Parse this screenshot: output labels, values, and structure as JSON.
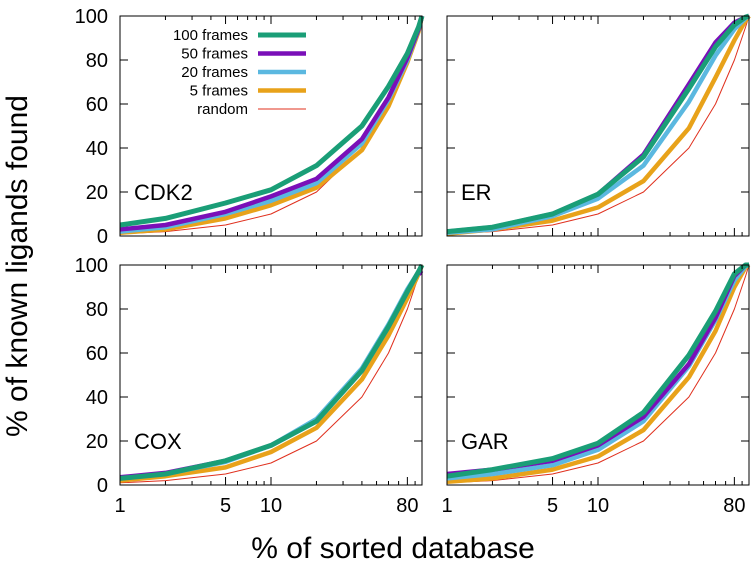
{
  "chart_data": {
    "type": "line",
    "ylabel": "% of known ligands found",
    "xlabel": "% of sorted database",
    "x_scale": "log",
    "x_ticks": [
      1,
      5,
      10,
      80
    ],
    "y_ticks": [
      0,
      20,
      40,
      60,
      80,
      100
    ],
    "xlim": [
      1,
      100
    ],
    "ylim": [
      0,
      100
    ],
    "legend": {
      "position": "top-left of first panel",
      "entries": [
        {
          "name": "100 frames",
          "color": "#1a9e77"
        },
        {
          "name": "50 frames",
          "color": "#7a0fb8"
        },
        {
          "name": "20 frames",
          "color": "#5bb8e0"
        },
        {
          "name": "5 frames",
          "color": "#e8a21a"
        },
        {
          "name": "random",
          "color": "#e0301e"
        }
      ]
    },
    "x": [
      1,
      2,
      5,
      10,
      20,
      40,
      60,
      80,
      95,
      100
    ],
    "panels": [
      {
        "title": "CDK2",
        "series": [
          {
            "name": "100 frames",
            "values": [
              5,
              8,
              15,
              21,
              32,
              50,
              68,
              83,
              95,
              100
            ]
          },
          {
            "name": "50 frames",
            "values": [
              3,
              5,
              11,
              18,
              26,
              44,
              63,
              81,
              94,
              100
            ]
          },
          {
            "name": "20 frames",
            "values": [
              2,
              4,
              10,
              16,
              24,
              42,
              62,
              80,
              94,
              100
            ]
          },
          {
            "name": "5 frames",
            "values": [
              1.5,
              3,
              8,
              14,
              22,
              39,
              59,
              79,
              93,
              100
            ]
          },
          {
            "name": "random",
            "values": [
              1,
              2,
              5,
              10,
              20,
              40,
              60,
              80,
              95,
              100
            ]
          }
        ]
      },
      {
        "title": "ER",
        "series": [
          {
            "name": "100 frames",
            "values": [
              2,
              4,
              10,
              19,
              36,
              67,
              86,
              96,
              99.5,
              100
            ]
          },
          {
            "name": "50 frames",
            "values": [
              2,
              4,
              10,
              19,
              37,
              69,
              88,
              97,
              99.5,
              100
            ]
          },
          {
            "name": "20 frames",
            "values": [
              1.5,
              3,
              9,
              17,
              32,
              61,
              82,
              94,
              99,
              100
            ]
          },
          {
            "name": "5 frames",
            "values": [
              1,
              3,
              7,
              13,
              25,
              49,
              72,
              89,
              98,
              100
            ]
          },
          {
            "name": "random",
            "values": [
              1,
              2,
              5,
              10,
              20,
              40,
              60,
              80,
              95,
              100
            ]
          }
        ]
      },
      {
        "title": "COX",
        "series": [
          {
            "name": "100 frames",
            "values": [
              3,
              5,
              11,
              18,
              29,
              52,
              72,
              88,
              97,
              100
            ]
          },
          {
            "name": "50 frames",
            "values": [
              3.5,
              5.5,
              11,
              18,
              29,
              52,
              72,
              88,
              97,
              96
            ]
          },
          {
            "name": "20 frames",
            "values": [
              3,
              5,
              10.5,
              18,
              30,
              53,
              73,
              89,
              97,
              100
            ]
          },
          {
            "name": "5 frames",
            "values": [
              2,
              4,
              8,
              15,
              26,
              48,
              68,
              85,
              96,
              100
            ]
          },
          {
            "name": "random",
            "values": [
              1,
              2,
              5,
              10,
              20,
              40,
              60,
              80,
              95,
              100
            ]
          }
        ]
      },
      {
        "title": "GAR",
        "series": [
          {
            "name": "100 frames",
            "values": [
              4,
              7,
              12,
              19,
              33,
              59,
              79,
              96,
              100,
              100
            ]
          },
          {
            "name": "50 frames",
            "values": [
              5,
              7,
              11,
              18,
              31,
              55,
              76,
              95,
              100,
              100
            ]
          },
          {
            "name": "20 frames",
            "values": [
              3,
              5,
              9,
              16,
              29,
              54,
              75,
              93,
              99.5,
              100
            ]
          },
          {
            "name": "5 frames",
            "values": [
              1.5,
              3,
              7,
              13,
              25,
              49,
              70,
              90,
              99,
              100
            ]
          },
          {
            "name": "random",
            "values": [
              1,
              2,
              5,
              10,
              20,
              40,
              60,
              80,
              95,
              100
            ]
          }
        ]
      }
    ]
  }
}
